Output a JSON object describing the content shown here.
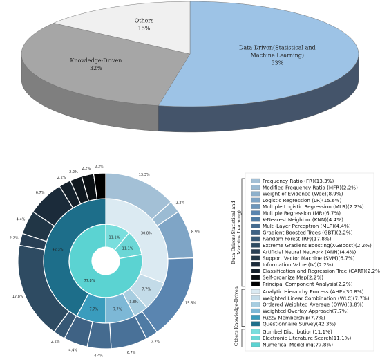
{
  "chart_data": [
    {
      "type": "pie",
      "style": "3d",
      "categories": [
        "Data-Driven(Statistical and Machine Learning)",
        "Knowledge-Driven",
        "Others"
      ],
      "values": [
        53,
        32,
        15
      ],
      "value_labels": [
        "53%",
        "32%",
        "15%"
      ],
      "colors": [
        "#9dc3e6",
        "#a6a6a6",
        "#f0f0f0"
      ],
      "side_colors": [
        "#44546a",
        "#7f7f7f",
        "#bfbfbf"
      ]
    },
    {
      "type": "sunburst",
      "inner_ring": {
        "labels": [
          "11.1%",
          "11.1%",
          "77.8%"
        ],
        "values": [
          11.1,
          11.1,
          77.8
        ],
        "colors": [
          "#79dedd",
          "#6cd7d6",
          "#5bd3d2"
        ]
      },
      "middle_ring": {
        "labels": [
          "30.8%",
          "7.7%",
          "3.8%",
          "7.7%",
          "7.7%",
          "42.3%"
        ],
        "values": [
          30.8,
          7.7,
          3.8,
          7.7,
          7.7,
          42.3
        ],
        "colors": [
          "#dbeaf2",
          "#c3dbe8",
          "#a7cde0",
          "#7db8d6",
          "#3a9cbd",
          "#1d6e8a"
        ]
      },
      "outer_ring": {
        "labels": [
          "13.3%",
          "2.2%",
          "8.9%",
          "15.6%",
          "2.2%",
          "6.7%",
          "4.4%",
          "4.4%",
          "2.2%",
          "17.8%",
          "2.2%",
          "4.4%",
          "6.7%",
          "2.2%",
          "2.2%",
          "2.2%",
          "2.2%"
        ],
        "values": [
          13.3,
          2.2,
          8.9,
          15.6,
          2.2,
          6.7,
          4.4,
          4.4,
          2.2,
          17.8,
          2.2,
          4.4,
          6.7,
          2.2,
          2.2,
          2.2,
          2.2
        ],
        "colors": [
          "#a3c0d6",
          "#9bbbd3",
          "#7fa5c6",
          "#5a85b0",
          "#4f7ba4",
          "#497198",
          "#456b8f",
          "#3f6284",
          "#375875",
          "#2e4b62",
          "#283f54",
          "#213646",
          "#1b2b3a",
          "#15212c",
          "#10181f",
          "#0b1014",
          "#000000"
        ]
      },
      "legend": [
        {
          "group": "Data-Driven(Statistical and Machine Learning)",
          "items": [
            {
              "label": "Frequency Ratio (FR)(13.3%)",
              "color": "#a3c0d6"
            },
            {
              "label": "Modified Frequency Ratio (MFR)(2.2%)",
              "color": "#9bbbd3"
            },
            {
              "label": "Weight of Evidence (Woe)(8.9%)",
              "color": "#8eb1cc"
            },
            {
              "label": "Logistic Regression (LR)(15.6%)",
              "color": "#7fa5c6"
            },
            {
              "label": "Multiple Logistic Regression (MLR)(2.2%)",
              "color": "#6d97bc"
            },
            {
              "label": "Multiple Regression (MR)(6.7%)",
              "color": "#5a85b0"
            },
            {
              "label": "K-Nearest Neighbor (KNN)(4.4%)",
              "color": "#4f7ba4"
            },
            {
              "label": "Multi-Layer Perceptron (MLP)(4.4%)",
              "color": "#456b8f"
            },
            {
              "label": "Gradient Boosted Trees (GBT)(2.2%)",
              "color": "#3f6284"
            },
            {
              "label": "Random Forest (RF)(17.8%)",
              "color": "#375875"
            },
            {
              "label": "Extreme Gradient Boosting(XGBoost)(2.2%)",
              "color": "#2e4b62"
            },
            {
              "label": "Artificial Neural Network (ANN)(4.4%)",
              "color": "#283f54"
            },
            {
              "label": "Support Vector Machine (SVM)(6.7%)",
              "color": "#213646"
            },
            {
              "label": "Information Value (IV)(2.2%)",
              "color": "#1b2b3a"
            },
            {
              "label": "Classification and Regression Tree (CART)(2.2%)",
              "color": "#15212c"
            },
            {
              "label": "Self-organize Map(2.2%)",
              "color": "#0b1014"
            },
            {
              "label": "Principal Component Analysis(2.2%)",
              "color": "#000000"
            }
          ]
        },
        {
          "group": "Knowledge-Driven",
          "items": [
            {
              "label": "Analytic Hierarchy Process (AHP)(30.8%)",
              "color": "#dbeaf2"
            },
            {
              "label": "Weighted Linear Combination (WLC)(7.7%)",
              "color": "#c3dbe8"
            },
            {
              "label": "Ordered Weighted Average (OWA)(3.8%)",
              "color": "#a7cde0"
            },
            {
              "label": "Weighted Overlay Approach(7.7%)",
              "color": "#7db8d6"
            },
            {
              "label": "Fuzzy Membership(7.7%)",
              "color": "#3a9cbd"
            },
            {
              "label": "Questionnaire Survey(42.3%)",
              "color": "#1d6e8a"
            }
          ]
        },
        {
          "group": "Others",
          "items": [
            {
              "label": "Gumbel Distribution(11.1%)",
              "color": "#79dedd"
            },
            {
              "label": "Electronic Literature Search(11.1%)",
              "color": "#6cd7d6"
            },
            {
              "label": "Numerical Modelling(77.8%)",
              "color": "#5bd3d2"
            }
          ]
        }
      ]
    }
  ]
}
